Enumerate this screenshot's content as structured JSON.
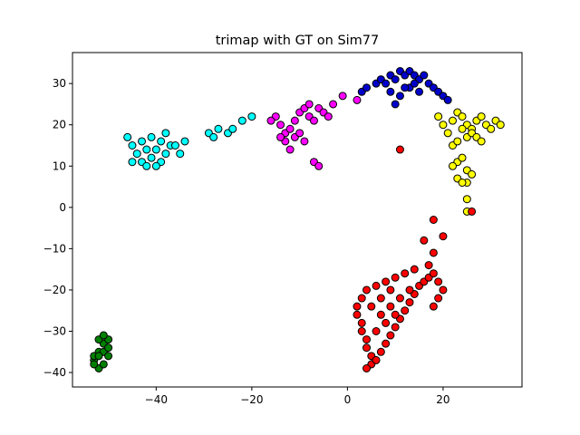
{
  "chart_data": {
    "type": "scatter",
    "title": "trimap with GT on Sim77",
    "xlabel": "",
    "ylabel": "",
    "xlim": [
      -57.5,
      36.5
    ],
    "ylim": [
      -43.5,
      37.5
    ],
    "xticks": [
      -40,
      -20,
      0,
      20
    ],
    "yticks": [
      -40,
      -30,
      -20,
      -10,
      0,
      10,
      20,
      30
    ],
    "grid": false,
    "legend": "none",
    "marker_edge_color": "#000000",
    "series": [
      {
        "color": "#00ffff",
        "points": [
          [
            -46,
            17
          ],
          [
            -45,
            15
          ],
          [
            -44,
            13
          ],
          [
            -43,
            11
          ],
          [
            -42,
            10
          ],
          [
            -41,
            12
          ],
          [
            -40,
            14
          ],
          [
            -39,
            16
          ],
          [
            -38,
            18
          ],
          [
            -37,
            15
          ],
          [
            -36,
            15
          ],
          [
            -35,
            13
          ],
          [
            -34,
            16
          ],
          [
            -29,
            18
          ],
          [
            -28,
            17
          ],
          [
            -27,
            19
          ],
          [
            -25,
            18
          ],
          [
            -24,
            19
          ],
          [
            -22,
            21
          ],
          [
            -20,
            22
          ],
          [
            -43,
            16
          ],
          [
            -41,
            17
          ],
          [
            -39,
            11
          ],
          [
            -45,
            11
          ],
          [
            -40,
            10
          ],
          [
            -38,
            13
          ],
          [
            -42,
            14
          ]
        ]
      },
      {
        "color": "#ff00ff",
        "points": [
          [
            -15,
            22
          ],
          [
            -14,
            20
          ],
          [
            -13,
            18
          ],
          [
            -12,
            19
          ],
          [
            -11,
            21
          ],
          [
            -10,
            23
          ],
          [
            -9,
            24
          ],
          [
            -8,
            22
          ],
          [
            -7,
            21
          ],
          [
            -6,
            24
          ],
          [
            -5,
            23
          ],
          [
            -4,
            22
          ],
          [
            -3,
            25
          ],
          [
            -1,
            27
          ],
          [
            2,
            26
          ],
          [
            -13,
            16
          ],
          [
            -11,
            17
          ],
          [
            -9,
            16
          ],
          [
            -14,
            17
          ],
          [
            -7,
            11
          ],
          [
            -6,
            10
          ],
          [
            -12,
            14
          ],
          [
            -16,
            21
          ],
          [
            -10,
            18
          ],
          [
            -8,
            25
          ]
        ]
      },
      {
        "color": "#0000cc",
        "points": [
          [
            3,
            28
          ],
          [
            4,
            29
          ],
          [
            6,
            30
          ],
          [
            7,
            31
          ],
          [
            8,
            30
          ],
          [
            9,
            32
          ],
          [
            10,
            31
          ],
          [
            11,
            33
          ],
          [
            12,
            32
          ],
          [
            13,
            33
          ],
          [
            14,
            32
          ],
          [
            15,
            31
          ],
          [
            16,
            32
          ],
          [
            17,
            30
          ],
          [
            18,
            29
          ],
          [
            19,
            28
          ],
          [
            20,
            27
          ],
          [
            21,
            26
          ],
          [
            9,
            28
          ],
          [
            11,
            27
          ],
          [
            13,
            29
          ],
          [
            15,
            28
          ],
          [
            10,
            25
          ],
          [
            12,
            29
          ],
          [
            14,
            30
          ]
        ]
      },
      {
        "color": "#ffff00",
        "points": [
          [
            19,
            22
          ],
          [
            20,
            20
          ],
          [
            21,
            18
          ],
          [
            22,
            21
          ],
          [
            23,
            23
          ],
          [
            24,
            22
          ],
          [
            25,
            20
          ],
          [
            26,
            19
          ],
          [
            27,
            21
          ],
          [
            28,
            22
          ],
          [
            29,
            20
          ],
          [
            30,
            19
          ],
          [
            31,
            21
          ],
          [
            32,
            20
          ],
          [
            22,
            15
          ],
          [
            23,
            16
          ],
          [
            24,
            19
          ],
          [
            25,
            17
          ],
          [
            26,
            18
          ],
          [
            27,
            17
          ],
          [
            28,
            16
          ],
          [
            23,
            11
          ],
          [
            24,
            12
          ],
          [
            22,
            10
          ],
          [
            25,
            9
          ],
          [
            26,
            8
          ],
          [
            23,
            7
          ],
          [
            25,
            6
          ],
          [
            24,
            6
          ],
          [
            25,
            2
          ],
          [
            25,
            -1
          ]
        ]
      },
      {
        "color": "#ff0000",
        "points": [
          [
            11,
            14
          ],
          [
            18,
            -3
          ],
          [
            20,
            -7
          ],
          [
            26,
            -1
          ],
          [
            16,
            -8
          ],
          [
            18,
            -11
          ],
          [
            17,
            -14
          ],
          [
            14,
            -15
          ],
          [
            12,
            -16
          ],
          [
            10,
            -17
          ],
          [
            8,
            -18
          ],
          [
            6,
            -19
          ],
          [
            4,
            -20
          ],
          [
            3,
            -22
          ],
          [
            2,
            -24
          ],
          [
            2,
            -26
          ],
          [
            3,
            -28
          ],
          [
            3,
            -30
          ],
          [
            4,
            -32
          ],
          [
            4,
            -34
          ],
          [
            5,
            -36
          ],
          [
            5,
            -38
          ],
          [
            4,
            -39
          ],
          [
            6,
            -37
          ],
          [
            7,
            -35
          ],
          [
            8,
            -33
          ],
          [
            9,
            -31
          ],
          [
            10,
            -29
          ],
          [
            11,
            -27
          ],
          [
            12,
            -25
          ],
          [
            13,
            -23
          ],
          [
            14,
            -21
          ],
          [
            15,
            -19
          ],
          [
            16,
            -18
          ],
          [
            17,
            -17
          ],
          [
            18,
            -16
          ],
          [
            19,
            -18
          ],
          [
            20,
            -20
          ],
          [
            19,
            -22
          ],
          [
            18,
            -24
          ],
          [
            7,
            -26
          ],
          [
            9,
            -24
          ],
          [
            11,
            -22
          ],
          [
            13,
            -20
          ],
          [
            6,
            -30
          ],
          [
            8,
            -28
          ],
          [
            10,
            -26
          ],
          [
            5,
            -24
          ],
          [
            7,
            -22
          ],
          [
            9,
            -20
          ]
        ]
      },
      {
        "color": "#008000",
        "points": [
          [
            -53,
            -37
          ],
          [
            -52,
            -35
          ],
          [
            -51,
            -33
          ],
          [
            -50,
            -32
          ],
          [
            -51,
            -35
          ],
          [
            -52,
            -39
          ],
          [
            -53,
            -36
          ],
          [
            -51,
            -38
          ],
          [
            -50,
            -34
          ],
          [
            -52,
            -32
          ],
          [
            -51,
            -31
          ],
          [
            -53,
            -38
          ],
          [
            -52,
            -36
          ],
          [
            -50,
            -36
          ]
        ]
      }
    ]
  }
}
